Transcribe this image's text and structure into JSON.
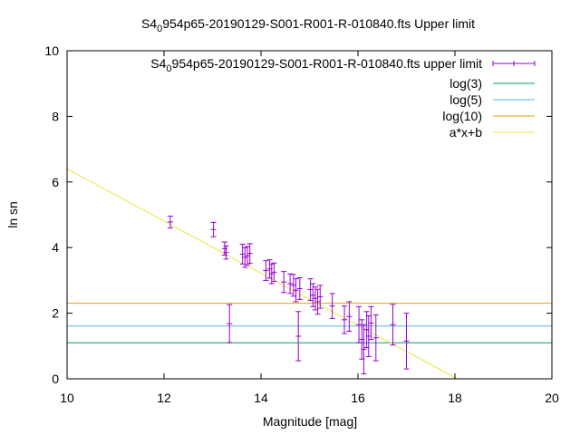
{
  "chart_data": {
    "type": "scatter",
    "title_parts": [
      "S4",
      "0",
      "954p65-20190129-S001-R001-R-010840.fts Upper limit"
    ],
    "xlabel": "Magnitude [mag]",
    "ylabel": "ln sn",
    "xlim": [
      10,
      20
    ],
    "ylim": [
      0,
      10
    ],
    "xticks": [
      "10",
      "12",
      "14",
      "16",
      "18",
      "20"
    ],
    "yticks": [
      "0",
      "2",
      "4",
      "6",
      "8",
      "10"
    ],
    "grid": false,
    "legend_position": "top-right",
    "legend": [
      {
        "label_parts": [
          "S4",
          "0",
          "954p65-20190129-S001-R001-R-010840.fts upper limit"
        ],
        "color": "#9400d3",
        "kind": "errorbar"
      },
      {
        "label": "log(3)",
        "color": "#009e73",
        "kind": "line"
      },
      {
        "label": "log(5)",
        "color": "#56b4e9",
        "kind": "line"
      },
      {
        "label": "log(10)",
        "color": "#e69f00",
        "kind": "line"
      },
      {
        "label": "a*x+b",
        "color": "#f0e442",
        "kind": "line"
      }
    ],
    "series": [
      {
        "color": "#9400d3",
        "points": [
          {
            "x": 12.13,
            "y": 4.78,
            "yerr": 0.18
          },
          {
            "x": 13.02,
            "y": 4.55,
            "yerr": 0.22
          },
          {
            "x": 13.25,
            "y": 3.97,
            "yerr": 0.2
          },
          {
            "x": 13.28,
            "y": 3.85,
            "yerr": 0.2
          },
          {
            "x": 13.35,
            "y": 1.68,
            "yerr": 0.58
          },
          {
            "x": 13.62,
            "y": 3.8,
            "yerr": 0.3
          },
          {
            "x": 13.67,
            "y": 3.7,
            "yerr": 0.3
          },
          {
            "x": 13.72,
            "y": 3.75,
            "yerr": 0.28
          },
          {
            "x": 13.77,
            "y": 3.82,
            "yerr": 0.3
          },
          {
            "x": 14.1,
            "y": 3.3,
            "yerr": 0.3
          },
          {
            "x": 14.18,
            "y": 3.35,
            "yerr": 0.28
          },
          {
            "x": 14.22,
            "y": 3.2,
            "yerr": 0.3
          },
          {
            "x": 14.27,
            "y": 3.25,
            "yerr": 0.28
          },
          {
            "x": 14.47,
            "y": 2.95,
            "yerr": 0.32
          },
          {
            "x": 14.6,
            "y": 2.9,
            "yerr": 0.3
          },
          {
            "x": 14.67,
            "y": 2.85,
            "yerr": 0.33
          },
          {
            "x": 14.72,
            "y": 2.7,
            "yerr": 0.35
          },
          {
            "x": 14.77,
            "y": 1.3,
            "yerr": 0.75
          },
          {
            "x": 14.8,
            "y": 2.75,
            "yerr": 0.33
          },
          {
            "x": 15.02,
            "y": 2.72,
            "yerr": 0.33
          },
          {
            "x": 15.07,
            "y": 2.55,
            "yerr": 0.35
          },
          {
            "x": 15.12,
            "y": 2.45,
            "yerr": 0.35
          },
          {
            "x": 15.17,
            "y": 2.35,
            "yerr": 0.38
          },
          {
            "x": 15.22,
            "y": 2.5,
            "yerr": 0.35
          },
          {
            "x": 15.47,
            "y": 2.22,
            "yerr": 0.38
          },
          {
            "x": 15.72,
            "y": 1.8,
            "yerr": 0.42
          },
          {
            "x": 15.82,
            "y": 1.9,
            "yerr": 0.45
          },
          {
            "x": 16.02,
            "y": 1.65,
            "yerr": 0.55
          },
          {
            "x": 16.08,
            "y": 1.2,
            "yerr": 0.6
          },
          {
            "x": 16.12,
            "y": 0.9,
            "yerr": 0.75
          },
          {
            "x": 16.18,
            "y": 1.5,
            "yerr": 0.55
          },
          {
            "x": 16.22,
            "y": 1.3,
            "yerr": 0.62
          },
          {
            "x": 16.27,
            "y": 1.7,
            "yerr": 0.5
          },
          {
            "x": 16.37,
            "y": 1.25,
            "yerr": 0.7
          },
          {
            "x": 16.72,
            "y": 1.65,
            "yerr": 0.62
          },
          {
            "x": 17.0,
            "y": 1.15,
            "yerr": 0.85
          }
        ]
      }
    ],
    "hlines": [
      {
        "name": "log(3)",
        "y": 1.0986,
        "color": "#009e73"
      },
      {
        "name": "log(5)",
        "y": 1.6094,
        "color": "#56b4e9"
      },
      {
        "name": "log(10)",
        "y": 2.3026,
        "color": "#e69f00"
      }
    ],
    "fit_line": {
      "name": "a*x+b",
      "x": [
        10,
        18.05
      ],
      "y": [
        6.4,
        0
      ],
      "color": "#f0e442"
    }
  }
}
